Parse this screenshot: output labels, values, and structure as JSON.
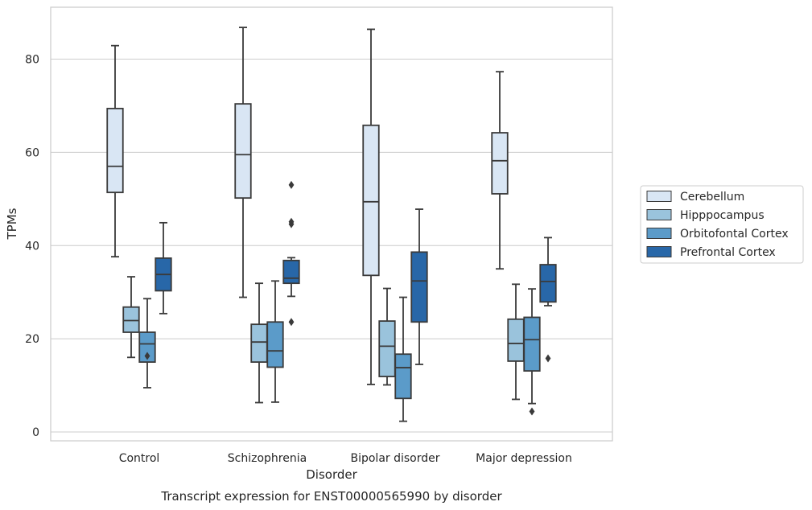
{
  "chart_data": {
    "type": "box",
    "title": "",
    "caption": "Transcript expression for ENST00000565990 by disorder",
    "xlabel": "Disorder",
    "ylabel": "TPMs",
    "ylim": [
      -2,
      91
    ],
    "yticks": [
      0,
      20,
      40,
      60,
      80
    ],
    "grid": "horizontal",
    "legend_position": "right",
    "categories": [
      "Control",
      "Schizophrenia",
      "Bipolar disorder",
      "Major depression"
    ],
    "series": [
      {
        "name": "Cerebellum",
        "color": "#d9e6f4",
        "boxes": [
          {
            "min": 37.6,
            "q1": 51.4,
            "median": 57.0,
            "q3": 69.4,
            "max": 82.9,
            "outliers": []
          },
          {
            "min": 28.9,
            "q1": 50.2,
            "median": 59.5,
            "q3": 70.4,
            "max": 86.8,
            "outliers": []
          },
          {
            "min": 10.2,
            "q1": 33.6,
            "median": 49.4,
            "q3": 65.8,
            "max": 86.4,
            "outliers": []
          },
          {
            "min": 35.0,
            "q1": 51.1,
            "median": 58.2,
            "q3": 64.2,
            "max": 77.3,
            "outliers": []
          }
        ]
      },
      {
        "name": "Hipppocampus",
        "color": "#9ac3dc",
        "boxes": [
          {
            "min": 16.0,
            "q1": 21.4,
            "median": 23.9,
            "q3": 26.8,
            "max": 33.3,
            "outliers": []
          },
          {
            "min": 6.3,
            "q1": 15.0,
            "median": 19.3,
            "q3": 23.1,
            "max": 31.9,
            "outliers": []
          },
          {
            "min": 10.1,
            "q1": 11.9,
            "median": 18.4,
            "q3": 23.8,
            "max": 30.8,
            "outliers": []
          },
          {
            "min": 7.0,
            "q1": 15.2,
            "median": 19.0,
            "q3": 24.2,
            "max": 31.7,
            "outliers": []
          }
        ]
      },
      {
        "name": "Orbitofontal Cortex",
        "color": "#5b9bc9",
        "boxes": [
          {
            "min": 9.5,
            "q1": 15.0,
            "median": 18.9,
            "q3": 21.4,
            "max": 28.6,
            "outliers": [
              16.3
            ]
          },
          {
            "min": 6.4,
            "q1": 13.9,
            "median": 17.4,
            "q3": 23.6,
            "max": 32.4,
            "outliers": []
          },
          {
            "min": 2.3,
            "q1": 7.2,
            "median": 13.8,
            "q3": 16.7,
            "max": 28.9,
            "outliers": []
          },
          {
            "min": 6.1,
            "q1": 13.1,
            "median": 19.8,
            "q3": 24.6,
            "max": 30.7,
            "outliers": [
              4.4
            ]
          }
        ]
      },
      {
        "name": "Prefrontal Cortex",
        "color": "#2867a8",
        "boxes": [
          {
            "min": 25.4,
            "q1": 30.3,
            "median": 33.8,
            "q3": 37.3,
            "max": 44.9,
            "outliers": []
          },
          {
            "min": 29.1,
            "q1": 31.9,
            "median": 33.0,
            "q3": 36.8,
            "max": 37.4,
            "outliers": [
              53.0,
              45.1,
              44.6,
              23.6
            ]
          },
          {
            "min": 14.5,
            "q1": 23.6,
            "median": 32.4,
            "q3": 38.6,
            "max": 47.8,
            "outliers": []
          },
          {
            "min": 27.1,
            "q1": 27.9,
            "median": 32.3,
            "q3": 35.9,
            "max": 41.7,
            "outliers": [
              15.8
            ]
          }
        ]
      }
    ]
  }
}
